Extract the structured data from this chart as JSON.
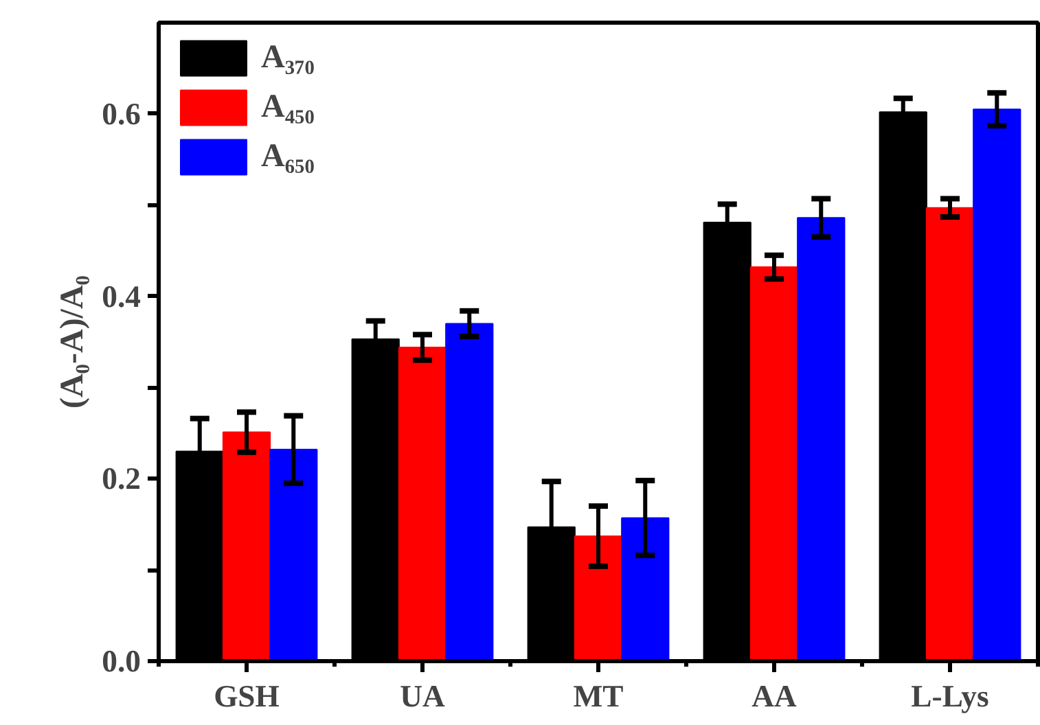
{
  "chart_data": {
    "type": "bar",
    "ylabel": "(A₀-A)/A₀",
    "categories": [
      "GSH",
      "UA",
      "MT",
      "AA",
      "L-Lys"
    ],
    "series": [
      {
        "name": "A₃₇₀",
        "color": "#000000",
        "values": [
          0.23,
          0.353,
          0.147,
          0.481,
          0.602
        ],
        "errors": [
          0.036,
          0.02,
          0.05,
          0.02,
          0.015
        ]
      },
      {
        "name": "A₄₅₀",
        "color": "#ff0000",
        "values": [
          0.251,
          0.344,
          0.137,
          0.432,
          0.497
        ],
        "errors": [
          0.022,
          0.014,
          0.033,
          0.013,
          0.01
        ]
      },
      {
        "name": "A₆₅₀",
        "color": "#0000ff",
        "values": [
          0.232,
          0.37,
          0.157,
          0.486,
          0.605
        ],
        "errors": [
          0.037,
          0.014,
          0.041,
          0.021,
          0.018
        ]
      }
    ],
    "ylim": [
      0,
      0.7
    ],
    "yticks": [
      {
        "value": 0,
        "label": "0.0"
      },
      {
        "value": 0.1,
        "label": null
      },
      {
        "value": 0.2,
        "label": "0.2"
      },
      {
        "value": 0.3,
        "label": null
      },
      {
        "value": 0.4,
        "label": "0.4"
      },
      {
        "value": 0.5,
        "label": null
      },
      {
        "value": 0.6,
        "label": "0.6"
      }
    ],
    "legend": "top left",
    "grid": false
  }
}
